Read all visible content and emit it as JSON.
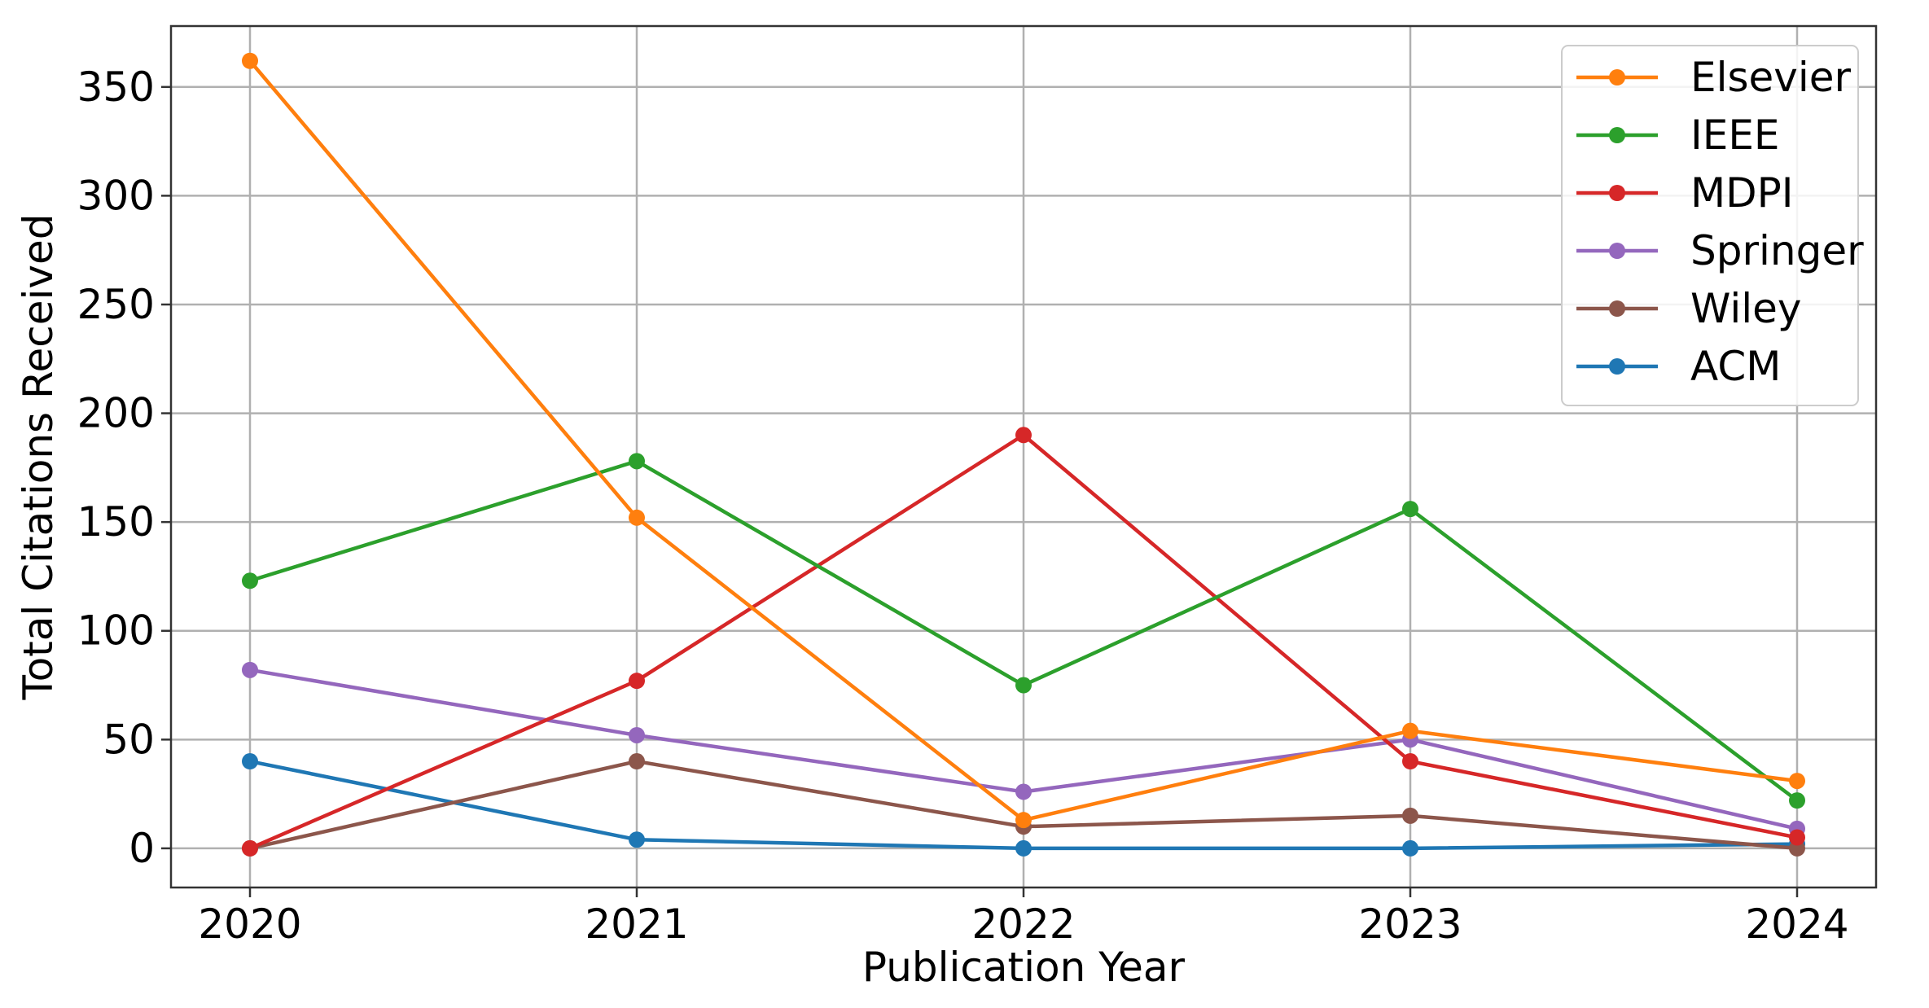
{
  "chart_data": {
    "type": "line",
    "title": "",
    "xlabel": "Publication Year",
    "ylabel": "Total Citations Received",
    "x": [
      "2020",
      "2021",
      "2022",
      "2023",
      "2024"
    ],
    "ylim": [
      -18,
      378
    ],
    "yticks": [
      0,
      50,
      100,
      150,
      200,
      250,
      300,
      350
    ],
    "grid": true,
    "legend_position": "top-right",
    "series": [
      {
        "name": "Elsevier",
        "color": "#ff7f0e",
        "values": [
          362,
          152,
          13,
          54,
          31
        ]
      },
      {
        "name": "IEEE",
        "color": "#2ca02c",
        "values": [
          123,
          178,
          75,
          156,
          22
        ]
      },
      {
        "name": "MDPI",
        "color": "#d62728",
        "values": [
          0,
          77,
          190,
          40,
          5
        ]
      },
      {
        "name": "Springer",
        "color": "#9467bd",
        "values": [
          82,
          52,
          26,
          50,
          9
        ]
      },
      {
        "name": "Wiley",
        "color": "#8c564b",
        "values": [
          0,
          40,
          10,
          15,
          0
        ]
      },
      {
        "name": "ACM",
        "color": "#1f77b4",
        "values": [
          40,
          4,
          0,
          0,
          2
        ]
      }
    ]
  }
}
